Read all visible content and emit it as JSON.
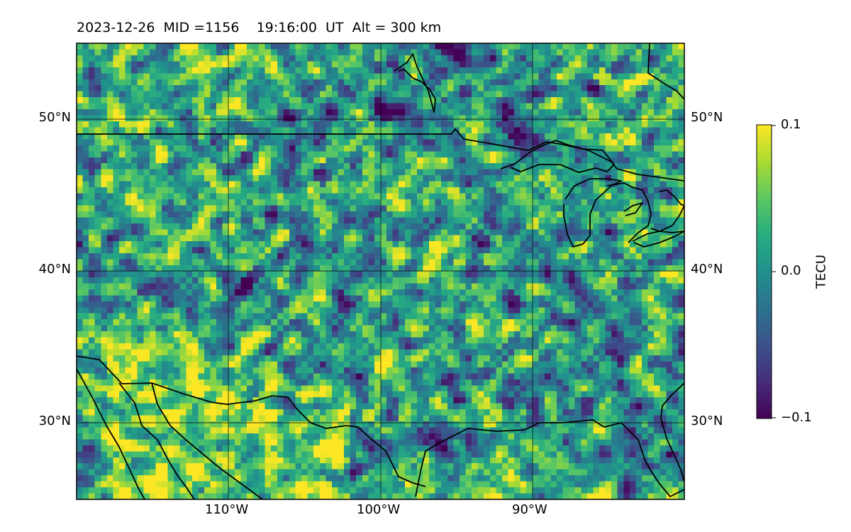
{
  "title": "2023-12-26  MID =1156    19:16:00  UT  Alt = 300 km",
  "map": {
    "extent_lon": [
      -120,
      -80
    ],
    "extent_lat": [
      25,
      55
    ],
    "projection": "PlateCarree",
    "gridlines": true,
    "lat_ticks": [
      {
        "value": 50,
        "label": "50°N"
      },
      {
        "value": 40,
        "label": "40°N"
      },
      {
        "value": 30,
        "label": "30°N"
      }
    ],
    "lon_ticks": [
      {
        "value": -110,
        "label": "110°W"
      },
      {
        "value": -100,
        "label": "100°W"
      },
      {
        "value": -90,
        "label": "90°W"
      }
    ],
    "field": "differential TEC (detrended)",
    "cell_size_deg": 0.5
  },
  "colorbar": {
    "label": "TECU",
    "colormap": "viridis",
    "range": [
      -0.1,
      0.1
    ],
    "ticks": [
      {
        "value": 0.1,
        "label": "0.1"
      },
      {
        "value": 0.0,
        "label": "0.0"
      },
      {
        "value": -0.1,
        "label": "−0.1"
      }
    ]
  },
  "colors": {
    "viridis_low": "#440154",
    "viridis_mid": "#21908d",
    "viridis_high": "#fde725",
    "coastline": "#000000"
  }
}
